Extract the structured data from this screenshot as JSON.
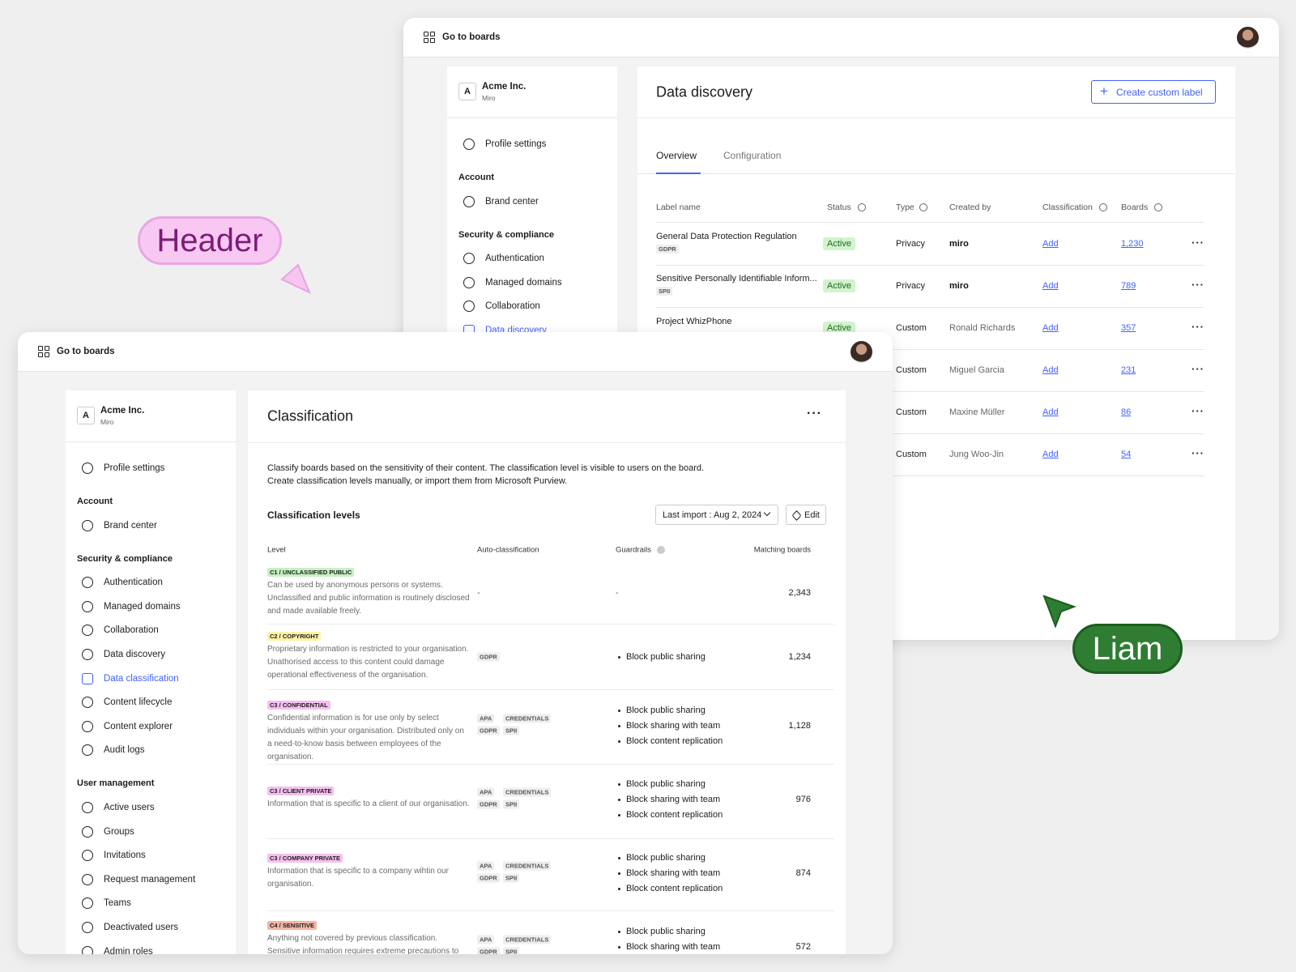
{
  "back": {
    "nav_button": "Go to boards",
    "org": {
      "initial": "A",
      "name": "Acme Inc.",
      "sub": "Miro"
    },
    "sidebar": {
      "profile": "Profile settings",
      "sections": [
        {
          "title": "Account",
          "items": [
            {
              "label": "Brand center"
            }
          ]
        },
        {
          "title": "Security & compliance",
          "items": [
            {
              "label": "Authentication"
            },
            {
              "label": "Managed domains"
            },
            {
              "label": "Collaboration"
            },
            {
              "label": "Data discovery",
              "active": true
            }
          ]
        }
      ]
    },
    "title": "Data discovery",
    "create_button": "Create custom label",
    "tabs": [
      "Overview",
      "Configuration"
    ],
    "columns": [
      "Label name",
      "Status",
      "Type",
      "Created by",
      "Classification",
      "Boards"
    ],
    "rows": [
      {
        "name": "General Data Protection Regulation",
        "tag": "GDPR",
        "status": "Active",
        "type": "Privacy",
        "created_by": "miro",
        "classification": "Add",
        "boards": "1,230"
      },
      {
        "name": "Sensitive Personally Identifiable Inform...",
        "tag": "SPII",
        "status": "Active",
        "type": "Privacy",
        "created_by": "miro",
        "classification": "Add",
        "boards": "789"
      },
      {
        "name": "Project WhizPhone",
        "status": "Active",
        "type": "Custom",
        "created_by": "Ronald Richards",
        "classification": "Add",
        "boards": "357"
      },
      {
        "type": "Custom",
        "created_by": "Miguel Garcia",
        "classification": "Add",
        "boards": "231"
      },
      {
        "type": "Custom",
        "created_by": "Maxine Müller",
        "classification": "Add",
        "boards": "86"
      },
      {
        "type": "Custom",
        "created_by": "Jung Woo-Jin",
        "classification": "Add",
        "boards": "54"
      }
    ]
  },
  "front": {
    "nav_button": "Go to boards",
    "org": {
      "initial": "A",
      "name": "Acme Inc.",
      "sub": "Miro"
    },
    "sidebar": {
      "profile": "Profile settings",
      "sections": [
        {
          "title": "Account",
          "items": [
            {
              "label": "Brand center"
            }
          ]
        },
        {
          "title": "Security & compliance",
          "items": [
            {
              "label": "Authentication"
            },
            {
              "label": "Managed domains"
            },
            {
              "label": "Collaboration"
            },
            {
              "label": "Data discovery"
            },
            {
              "label": "Data classification",
              "active": true
            },
            {
              "label": "Content lifecycle"
            },
            {
              "label": "Content explorer"
            },
            {
              "label": "Audit logs"
            }
          ]
        },
        {
          "title": "User management",
          "items": [
            {
              "label": "Active users"
            },
            {
              "label": "Groups"
            },
            {
              "label": "Invitations"
            },
            {
              "label": "Request management"
            },
            {
              "label": "Teams"
            },
            {
              "label": "Deactivated users"
            },
            {
              "label": "Admin roles"
            }
          ]
        }
      ]
    },
    "title": "Classification",
    "description": [
      "Classify boards based on the sensitivity of their content. The classification level is visible to users on the board.",
      "Create classification levels manually, or import them from Microsoft Purview."
    ],
    "section_title": "Classification levels",
    "last_import": "Last import : Aug 2, 2024",
    "edit_button": "Edit",
    "columns": [
      "Level",
      "Auto-classification",
      "Guardrails",
      "Matching boards"
    ],
    "rows": [
      {
        "tag": "C1 / UNCLASSIFIED PUBLIC",
        "color": "#c6f0c2",
        "description": "Can be used by anonymous persons or systems. Unclassified and public information is routinely disclosed and made available freely.",
        "auto": "-",
        "guardrails": "-",
        "boards": "2,343"
      },
      {
        "tag": "C2 / COPYRIGHT",
        "color": "#fff2a6",
        "description": "Proprietary information is restricted to your organisation. Unathorised access to this content could damage operational effectiveness of the organisation.",
        "auto": [
          "GDPR"
        ],
        "guardrails": [
          "Block public sharing"
        ],
        "boards": "1,234"
      },
      {
        "tag": "C3 / CONFIDENTIAL",
        "color": "#f5c0ef",
        "description": "Confidential information is for use only by select individuals within your organisation. Distributed only on a need-to-know basis between employees of the organisation.",
        "auto": [
          "APA",
          "CREDENTIALS",
          "GDPR",
          "SPII"
        ],
        "guardrails": [
          "Block public sharing",
          "Block sharing with team",
          "Block content replication"
        ],
        "boards": "1,128"
      },
      {
        "tag": "C3 / CLIENT PRIVATE",
        "color": "#f5c0ef",
        "description": "Information that is specific to a client of our organisation.",
        "auto": [
          "APA",
          "CREDENTIALS",
          "GDPR",
          "SPII"
        ],
        "guardrails": [
          "Block public sharing",
          "Block sharing with team",
          "Block content replication"
        ],
        "boards": "976"
      },
      {
        "tag": "C3 / COMPANY PRIVATE",
        "color": "#f5c0ef",
        "description": "Information that is specific to a company wihtin our organisation.",
        "auto": [
          "APA",
          "CREDENTIALS",
          "GDPR",
          "SPII"
        ],
        "guardrails": [
          "Block public sharing",
          "Block sharing with team",
          "Block content replication"
        ],
        "boards": "874"
      },
      {
        "tag": "C4 / SENSITIVE",
        "color": "#f4b6a6",
        "description": "Anything not covered by previous classification. Sensitive information requires extreme precautions to ensure the",
        "auto": [
          "APA",
          "CREDENTIALS",
          "GDPR",
          "SPII"
        ],
        "guardrails": [
          "Block public sharing",
          "Block sharing with team"
        ],
        "boards": "572"
      }
    ]
  },
  "annotations": {
    "header_label": "Header",
    "cursor_label": "Liam"
  }
}
